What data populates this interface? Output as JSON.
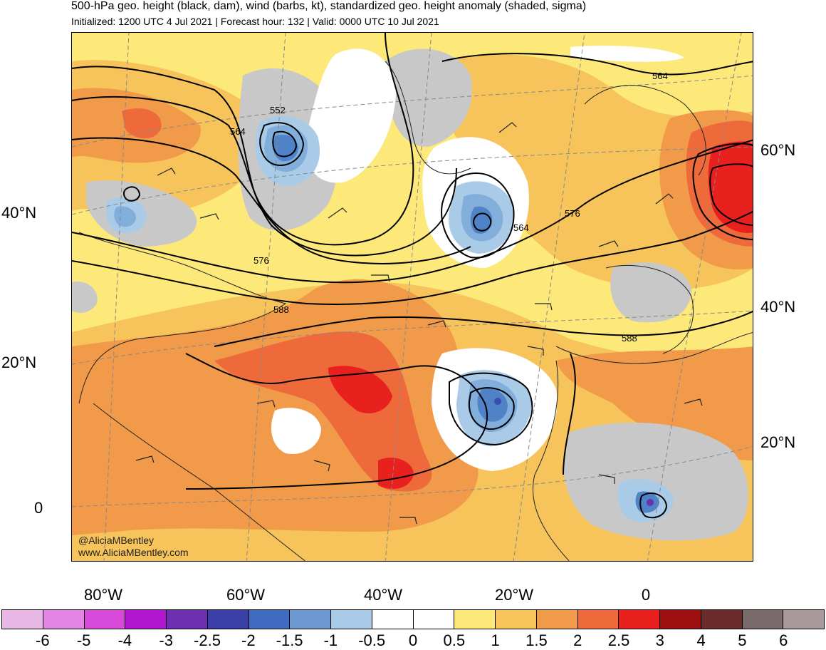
{
  "title": "500-hPa geo. height (black, dam), wind (barbs, kt), standardized geo. height anomaly (shaded, sigma)",
  "subtitle": "Initialized: 1200 UTC 4 Jul 2021 | Forecast hour: 132 | Valid: 0000 UTC 10 Jul 2021",
  "credits": [
    "@AliciaMBentley",
    "www.AliciaMBentley.com"
  ],
  "lat_labels_left": [
    "40°N",
    "20°N",
    "0"
  ],
  "lat_labels_right": [
    "60°N",
    "40°N",
    "20°N"
  ],
  "lon_labels": [
    "80°W",
    "60°W",
    "40°W",
    "20°W",
    "0"
  ],
  "contour_labels": [
    "552",
    "564",
    "576",
    "588",
    "564",
    "576",
    "588",
    "564"
  ],
  "colors": {
    "land_gray": "#c8c8c8",
    "anom_pos_05": "#fde87a",
    "anom_pos_1": "#f6c45a",
    "anom_pos_15": "#f19a4a",
    "anom_pos_2": "#ee6a3a",
    "anom_pos_25": "#e8201e",
    "anom_neg_05": "#a9cbe8",
    "anom_neg_1": "#82aedb",
    "anom_neg_15": "#4f82c7",
    "anom_neg_2": "#3b4db0"
  },
  "colorbar": {
    "labels": [
      "-6",
      "-5",
      "-4",
      "-3",
      "-2.5",
      "-2",
      "-1.5",
      "-1",
      "-0.5",
      "0",
      "0.5",
      "1",
      "1.5",
      "2",
      "2.5",
      "3",
      "4",
      "5",
      "6"
    ],
    "colors": [
      "#e9b7e6",
      "#e383e4",
      "#d84ad9",
      "#b117cf",
      "#6b2fb0",
      "#3a3fa8",
      "#3f6bc1",
      "#6d99d3",
      "#a9cbe8",
      "#ffffff",
      "#ffffff",
      "#fde87a",
      "#f6c45a",
      "#f19a4a",
      "#ee6a3a",
      "#e8201e",
      "#9e0f0f",
      "#6b2b2b",
      "#786a6a",
      "#a89a9a"
    ]
  }
}
